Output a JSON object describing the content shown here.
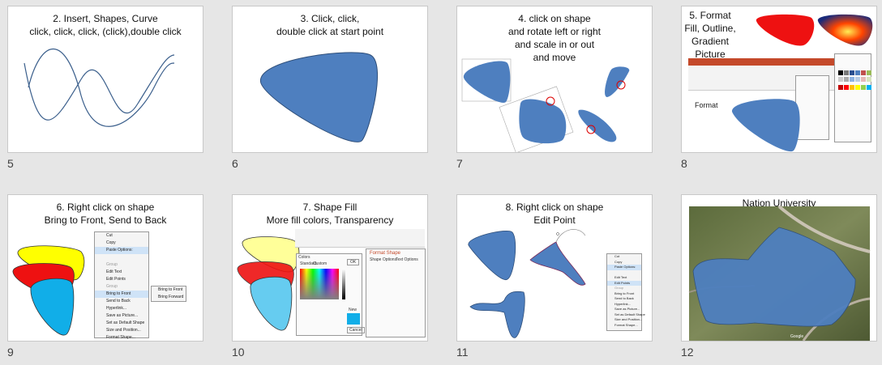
{
  "slides": [
    {
      "number": "5",
      "title": "2. Insert, Shapes, Curve\nclick, click, click, (click),double click"
    },
    {
      "number": "6",
      "title": "3. Click, click,\ndouble click at start point"
    },
    {
      "number": "7",
      "title": "4. click on shape\nand rotate left or right\nand scale in or out\nand move"
    },
    {
      "number": "8",
      "title": "5. Format\nFill, Outline,\nGradient\nPicture",
      "extra_label": "Format"
    },
    {
      "number": "9",
      "title": "6. Right click on shape\nBring to Front, Send to Back",
      "menu": [
        "Cut",
        "Copy",
        "Paste Options:",
        "",
        "Group",
        "Edit Text",
        "Edit Points",
        "Group",
        "Bring to Front",
        "Send to Back",
        "Hyperlink...",
        "Save as Picture...",
        "Set as Default Shape",
        "Size and Position...",
        "Format Shape..."
      ],
      "submenu": [
        "Bring to Front",
        "Bring Forward"
      ]
    },
    {
      "number": "10",
      "title": "7. Shape Fill\nMore fill colors, Transparency",
      "colors_dialog": "Colors",
      "tabs": [
        "Standard",
        "Custom"
      ],
      "ok": "OK",
      "cancel": "Cancel",
      "new": "New",
      "pane_title": "Format Shape",
      "pane_tabs": [
        "Shape Options",
        "Text Options"
      ]
    },
    {
      "number": "11",
      "title": "8. Right click on shape\nEdit Point",
      "menu": [
        "Cut",
        "Copy",
        "Paste Options:",
        "",
        "Edit Text",
        "Edit Points",
        "Group",
        "Bring to Front",
        "Send to Back",
        "Hyperlink...",
        "Save as Picture...",
        "Set as Default Shape",
        "Size and Position...",
        "Format Shape..."
      ]
    },
    {
      "number": "12",
      "title": "Nation University",
      "map_credit": "Google"
    }
  ],
  "colors": {
    "shape_blue": "#4e7fbf",
    "yellow": "#ffff00",
    "red": "#ee1111",
    "cyan": "#11aee8",
    "light_cyan": "#66ccf0",
    "light_yellow": "#ffff99"
  }
}
